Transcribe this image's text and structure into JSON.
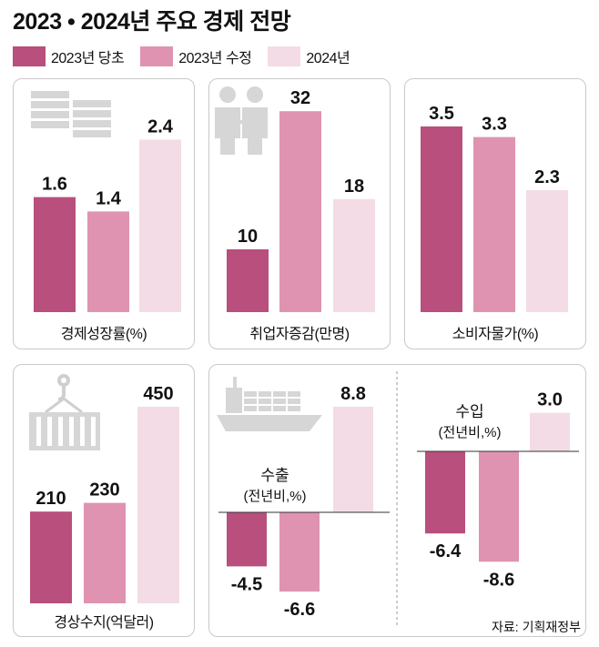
{
  "title": "2023 • 2024년 주요 경제 전망",
  "legend": [
    {
      "label": "2023년 당초",
      "color": "#b84f7c"
    },
    {
      "label": "2023년 수정",
      "color": "#df93b1"
    },
    {
      "label": "2024년",
      "color": "#f3dce5"
    }
  ],
  "source": "자료: 기획재정부",
  "chart_data": [
    {
      "type": "bar",
      "title": "경제성장률(%)",
      "categories": [
        "2023년 당초",
        "2023년 수정",
        "2024년"
      ],
      "values": [
        1.6,
        1.4,
        2.4
      ],
      "labels": [
        "1.6",
        "1.4",
        "2.4"
      ],
      "icon": "money-stack-icon"
    },
    {
      "type": "bar",
      "title": "취업자증감(만명)",
      "categories": [
        "2023년 당초",
        "2023년 수정",
        "2024년"
      ],
      "values": [
        10,
        32,
        18
      ],
      "labels": [
        "10",
        "32",
        "18"
      ],
      "icon": "people-icon"
    },
    {
      "type": "bar",
      "title": "소비자물가(%)",
      "categories": [
        "2023년 당초",
        "2023년 수정",
        "2024년"
      ],
      "values": [
        3.5,
        3.3,
        2.3
      ],
      "labels": [
        "3.5",
        "3.3",
        "2.3"
      ]
    },
    {
      "type": "bar",
      "title": "경상수지(억달러)",
      "categories": [
        "2023년 당초",
        "2023년 수정",
        "2024년"
      ],
      "values": [
        210,
        230,
        450
      ],
      "labels": [
        "210",
        "230",
        "450"
      ],
      "icon": "container-crane-icon"
    },
    {
      "type": "bar",
      "title": "수출",
      "subtitle": "(전년비,%)",
      "categories": [
        "2023년 당초",
        "2023년 수정",
        "2024년"
      ],
      "values": [
        -4.5,
        -6.6,
        8.8
      ],
      "labels": [
        "-4.5",
        "-6.6",
        "8.8"
      ],
      "icon": "cargo-ship-icon"
    },
    {
      "type": "bar",
      "title": "수입",
      "subtitle": "(전년비,%)",
      "categories": [
        "2023년 당초",
        "2023년 수정",
        "2024년"
      ],
      "values": [
        -6.4,
        -8.6,
        3.0
      ],
      "labels": [
        "-6.4",
        "-8.6",
        "3.0"
      ]
    }
  ]
}
